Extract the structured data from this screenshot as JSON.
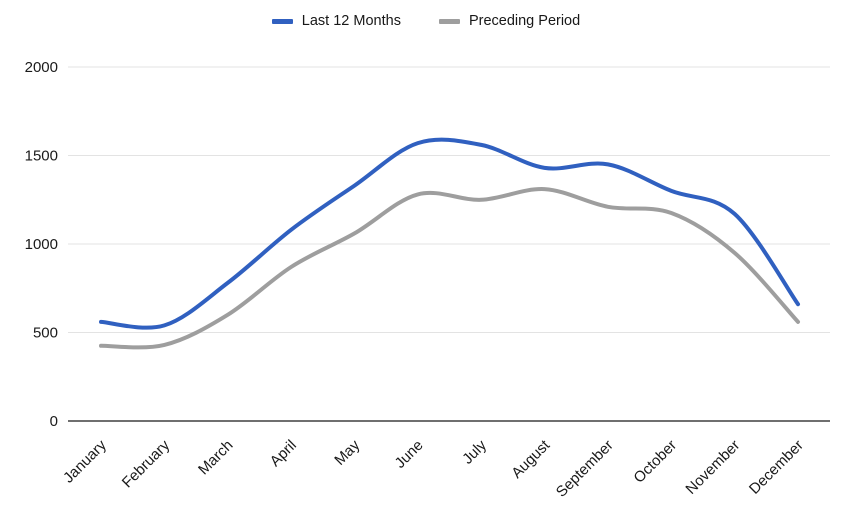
{
  "chart_data": {
    "type": "line",
    "title": "",
    "xlabel": "",
    "ylabel": "",
    "categories": [
      "January",
      "February",
      "March",
      "April",
      "May",
      "June",
      "July",
      "August",
      "September",
      "October",
      "November",
      "December"
    ],
    "series": [
      {
        "name": "Last 12 Months",
        "color": "#3060c0",
        "values": [
          560,
          540,
          780,
          1080,
          1330,
          1570,
          1560,
          1430,
          1450,
          1300,
          1170,
          660
        ]
      },
      {
        "name": "Preceding Period",
        "color": "#9e9e9e",
        "values": [
          425,
          430,
          600,
          870,
          1060,
          1280,
          1250,
          1310,
          1210,
          1175,
          950,
          560
        ]
      }
    ],
    "y_ticks": [
      0,
      500,
      1000,
      1500,
      2000
    ],
    "ylim": [
      0,
      2000
    ],
    "grid": true,
    "smooth": true,
    "legend_position": "top",
    "x_label_rotation_deg": -45
  },
  "style_colors": {
    "gridline": "#e3e3e3",
    "zero_axis": "#6f6f6f",
    "tick_text": "#1a1a1a",
    "background": "#ffffff"
  }
}
